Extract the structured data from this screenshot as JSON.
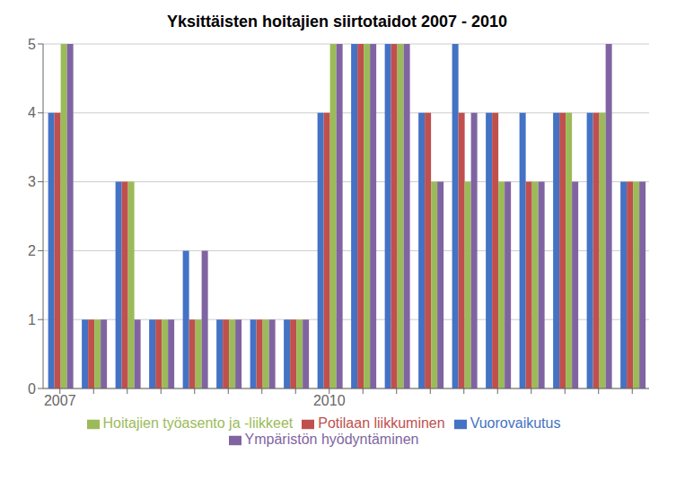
{
  "chart_data": {
    "type": "bar",
    "title": "Yksittäisten hoitajien siirtotaidot 2007 - 2010",
    "categories": [
      "2007",
      null,
      null,
      null,
      null,
      null,
      null,
      null,
      "2010",
      null,
      null,
      null,
      null,
      null,
      null,
      null,
      null,
      null
    ],
    "series": [
      {
        "name": "Vuorovaikutus",
        "color": "#4472C4",
        "values": [
          4,
          1,
          3,
          1,
          2,
          1,
          1,
          1,
          4,
          5,
          5,
          4,
          5,
          4,
          4,
          4,
          4,
          3
        ]
      },
      {
        "name": "Potilaan liikkuminen",
        "color": "#C0504D",
        "values": [
          4,
          1,
          3,
          1,
          1,
          1,
          1,
          1,
          4,
          5,
          5,
          4,
          4,
          4,
          3,
          4,
          4,
          3
        ]
      },
      {
        "name": "Hoitajien työasento ja -liikkeet",
        "color": "#9BBB59",
        "values": [
          5,
          1,
          3,
          1,
          1,
          1,
          1,
          1,
          5,
          5,
          5,
          3,
          3,
          3,
          3,
          4,
          4,
          3
        ]
      },
      {
        "name": "Ympäristön hyödyntäminen",
        "color": "#8064A2",
        "values": [
          5,
          1,
          1,
          1,
          2,
          1,
          1,
          1,
          5,
          5,
          5,
          3,
          4,
          3,
          3,
          3,
          5,
          3
        ]
      }
    ],
    "ylim": [
      0,
      5
    ],
    "yticks": [
      0,
      1,
      2,
      3,
      4,
      5
    ],
    "grid": true,
    "legend": "bottom"
  }
}
